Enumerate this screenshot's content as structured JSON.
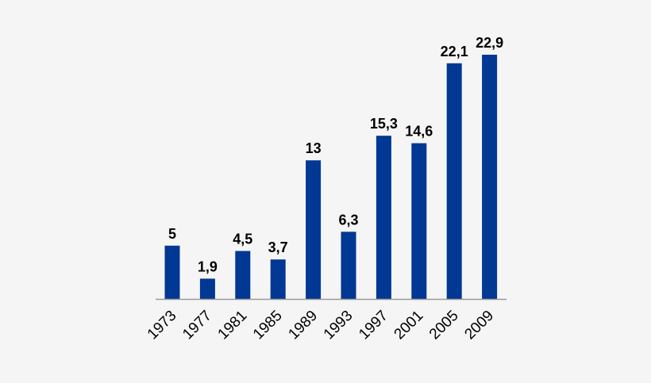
{
  "chart_data": {
    "type": "bar",
    "categories": [
      "1973",
      "1977",
      "1981",
      "1985",
      "1989",
      "1993",
      "1997",
      "2001",
      "2005",
      "2009"
    ],
    "values": [
      5,
      1.9,
      4.5,
      3.7,
      13,
      6.3,
      15.3,
      14.6,
      22.1,
      22.9
    ],
    "value_labels": [
      "5",
      "1,9",
      "4,5",
      "3,7",
      "13",
      "6,3",
      "15,3",
      "14,6",
      "22,1",
      "22,9"
    ],
    "title": "",
    "xlabel": "",
    "ylabel": "",
    "ylim": [
      0,
      22.9
    ],
    "grid": false,
    "legend": "none",
    "colors": {
      "bar": "#003893",
      "axis": "#9a9a9a",
      "background": "#f5f5f5",
      "text": "#000000"
    }
  }
}
